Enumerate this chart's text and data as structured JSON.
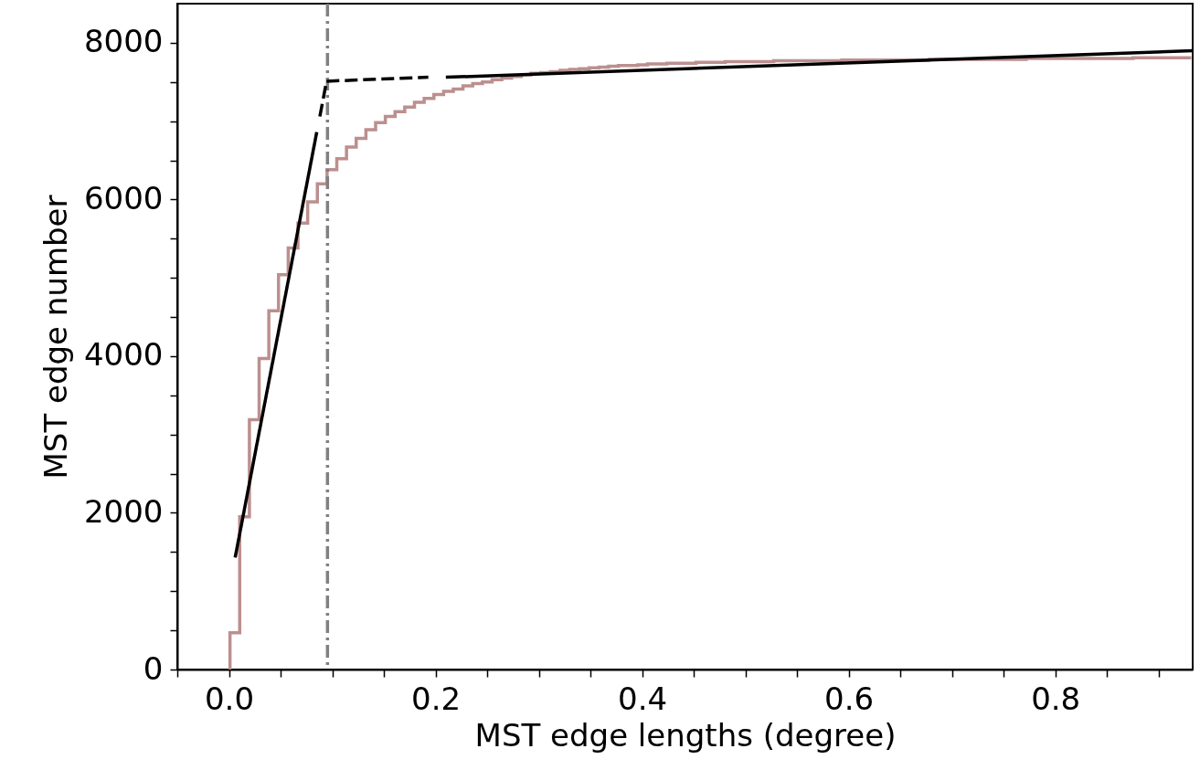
{
  "chart_data": {
    "type": "histogram",
    "xlabel": "MST edge lengths (degree)",
    "ylabel": "MST edge number",
    "xlim": [
      -0.05,
      0.933
    ],
    "ylim": [
      0,
      8500
    ],
    "xticks": [
      {
        "value": -0.05,
        "label": null
      },
      {
        "value": 0,
        "label": "0.0"
      },
      {
        "value": 0.05,
        "label": null
      },
      {
        "value": 0.1,
        "label": null
      },
      {
        "value": 0.15,
        "label": null
      },
      {
        "value": 0.2,
        "label": "0.2"
      },
      {
        "value": 0.25,
        "label": null
      },
      {
        "value": 0.3,
        "label": null
      },
      {
        "value": 0.35,
        "label": null
      },
      {
        "value": 0.4,
        "label": "0.4"
      },
      {
        "value": 0.45,
        "label": null
      },
      {
        "value": 0.5,
        "label": null
      },
      {
        "value": 0.55,
        "label": null
      },
      {
        "value": 0.6,
        "label": "0.6"
      },
      {
        "value": 0.65,
        "label": null
      },
      {
        "value": 0.7,
        "label": null
      },
      {
        "value": 0.75,
        "label": null
      },
      {
        "value": 0.8,
        "label": "0.8"
      },
      {
        "value": 0.85,
        "label": null
      },
      {
        "value": 0.9,
        "label": null
      }
    ],
    "yticks": [
      0,
      {
        "value": 500,
        "label": null
      },
      {
        "value": 1000,
        "label": null
      },
      {
        "value": 1500,
        "label": null
      },
      2000,
      {
        "value": 2500,
        "label": null
      },
      {
        "value": 3000,
        "label": null
      },
      {
        "value": 3500,
        "label": null
      },
      4000,
      {
        "value": 4500,
        "label": null
      },
      {
        "value": 5000,
        "label": null
      },
      {
        "value": 5500,
        "label": null
      },
      6000,
      {
        "value": 6500,
        "label": null
      },
      {
        "value": 7000,
        "label": null
      },
      {
        "value": 7500,
        "label": null
      },
      8000
    ],
    "grid": false,
    "bins": [
      0.001,
      0.0104,
      0.0198,
      0.0292,
      0.0386,
      0.048,
      0.0574,
      0.0668,
      0.0762,
      0.0856,
      0.095,
      0.1044,
      0.1138,
      0.1232,
      0.1326,
      0.142,
      0.1514,
      0.1608,
      0.1702,
      0.1796,
      0.189,
      0.1984,
      0.2078,
      0.2172,
      0.2266,
      0.236,
      0.2454,
      0.2548,
      0.2642,
      0.2736,
      0.283,
      0.2924,
      0.3018,
      0.3112,
      0.3206,
      0.33,
      0.3394,
      0.3488,
      0.3582,
      0.3676,
      0.377,
      0.3864,
      0.3958,
      0.4052,
      0.4146,
      0.424,
      0.4334,
      0.4428,
      0.4522,
      0.4616,
      0.471,
      0.4804,
      0.4898,
      0.4992,
      0.5086,
      0.518,
      0.5274,
      0.5368,
      0.5462,
      0.5556,
      0.565,
      0.5744,
      0.5838,
      0.5932,
      0.6026,
      0.612,
      0.6214,
      0.6308,
      0.6402,
      0.6496,
      0.659,
      0.6684,
      0.6778,
      0.6872,
      0.6966,
      0.706,
      0.7154,
      0.7248,
      0.7342,
      0.7436,
      0.753,
      0.7624,
      0.7718,
      0.7812,
      0.7906,
      0.8,
      0.8094,
      0.8188,
      0.8282,
      0.8376,
      0.847,
      0.8564,
      0.8658,
      0.8752,
      0.8846,
      0.894,
      0.9034,
      0.9128,
      0.9222,
      0.9316
    ],
    "values": [
      470,
      1950,
      3190,
      3970,
      4580,
      5040,
      5380,
      5700,
      5970,
      6200,
      6380,
      6520,
      6670,
      6780,
      6890,
      6980,
      7060,
      7120,
      7180,
      7240,
      7290,
      7340,
      7380,
      7410,
      7450,
      7480,
      7500,
      7530,
      7550,
      7570,
      7590,
      7610,
      7620,
      7630,
      7650,
      7660,
      7670,
      7680,
      7690,
      7700,
      7710,
      7710,
      7720,
      7730,
      7730,
      7740,
      7740,
      7740,
      7750,
      7750,
      7750,
      7760,
      7760,
      7760,
      7760,
      7760,
      7770,
      7770,
      7770,
      7770,
      7770,
      7770,
      7770,
      7780,
      7780,
      7780,
      7780,
      7780,
      7780,
      7780,
      7780,
      7780,
      7790,
      7790,
      7790,
      7790,
      7790,
      7790,
      7790,
      7790,
      7790,
      7790,
      7800,
      7800,
      7800,
      7800,
      7800,
      7800,
      7800,
      7800,
      7800,
      7800,
      7800,
      7810,
      7810,
      7810,
      7810,
      7810,
      7810
    ],
    "color": "#bc8f8f",
    "series": [
      {
        "type": "line",
        "color": "#000000",
        "line_style": "solid",
        "x": [
          0.006,
          0.085
        ],
        "values": [
          1430,
          6860
        ]
      },
      {
        "type": "line",
        "color": "#000000",
        "line_style": "dashed",
        "x": [
          0.088,
          0.0945
        ],
        "values": [
          7060,
          7510
        ]
      },
      {
        "type": "line",
        "color": "#000000",
        "line_style": "dashed",
        "x": [
          0.0945,
          0.193
        ],
        "values": [
          7510,
          7560
        ]
      },
      {
        "type": "line",
        "color": "#000000",
        "line_style": "solid",
        "x": [
          0.21,
          0.933
        ],
        "values": [
          7560,
          7900
        ]
      }
    ],
    "ref_lines": [
      {
        "axis": "x",
        "value": 0.0954,
        "color": "#808080",
        "line_style": "dashdot"
      }
    ]
  }
}
